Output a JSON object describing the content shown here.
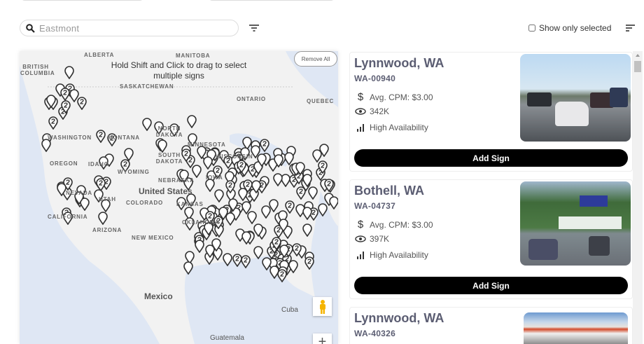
{
  "search": {
    "value": "Eastmont",
    "icon": "search-icon"
  },
  "filter_icon": "filter-icon",
  "show_only_selected": {
    "label": "Show only selected",
    "checked": false
  },
  "sort_icon": "sort-icon",
  "map": {
    "hint": "Hold Shift and Click to drag to select multiple signs",
    "remove_all": "Remove All",
    "labels": {
      "alberta": "ALBERTA",
      "manitoba": "MANITOBA",
      "bc": "BRITISH COLUMBIA",
      "sask": "SASKATCHEWAN",
      "ontario": "ONTARIO",
      "quebec": "QUEBEC",
      "washington": "WASHINGTON",
      "montana": "MONTANA",
      "oregon": "OREGON",
      "idaho": "IDAHO",
      "wyoming": "WYOMING",
      "sdakota": "SOUTH DAKOTA",
      "ndakota": "NORTH DAKOTA",
      "minnesota": "MINNESOTA",
      "wisconsin": "WISCONSIN",
      "nebraska": "NEBRASKA",
      "iowa": "IOWA",
      "nevada": "NEVADA",
      "utah": "UTAH",
      "colorado": "COLORADO",
      "kansas": "KANSAS",
      "california": "CALIFORNIA",
      "arizona": "ARIZONA",
      "newmexico": "NEW MEXICO",
      "oklahoma": "OKLAHOMA",
      "us": "United States",
      "mexico": "Mexico",
      "cuba": "Cuba",
      "guatemala": "Guatemala"
    },
    "pegman_icon": "street-view-icon",
    "zoom_in": "+"
  },
  "cards": [
    {
      "title": "Lynnwood, WA",
      "id": "WA-00940",
      "cpm": "Avg. CPM: $3.00",
      "views": "342K",
      "availability": "High Availability",
      "button": "Add Sign"
    },
    {
      "title": "Bothell, WA",
      "id": "WA-04737",
      "cpm": "Avg. CPM: $3.00",
      "views": "397K",
      "availability": "High Availability",
      "button": "Add Sign"
    },
    {
      "title": "Lynnwood, WA",
      "id": "WA-40326"
    }
  ]
}
